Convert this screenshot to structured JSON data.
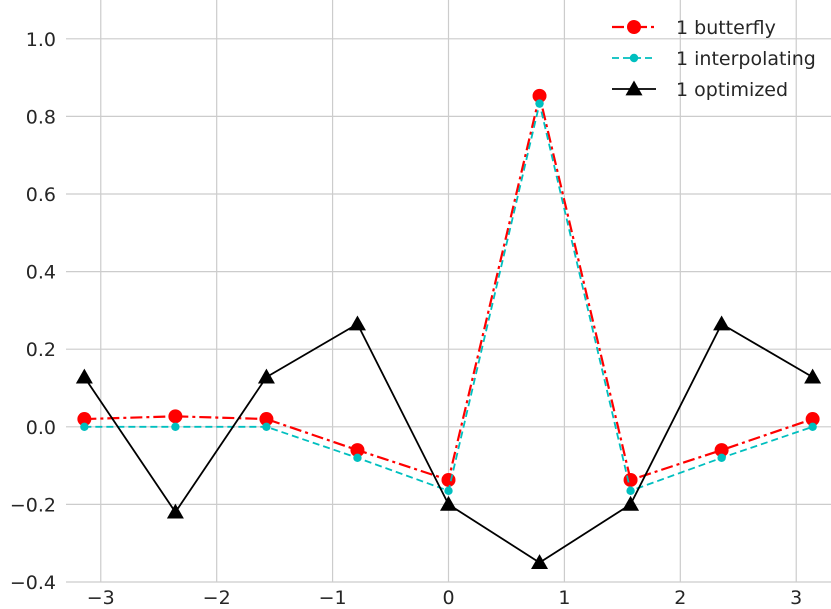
{
  "chart_data": {
    "type": "line",
    "title": "",
    "xlabel": "",
    "ylabel": "",
    "xlim": [
      -3.3,
      3.3
    ],
    "ylim": [
      -0.4,
      1.1
    ],
    "grid": true,
    "legend_position": "top-right",
    "x_ticks": [
      -3,
      -2,
      -1,
      0,
      1,
      2,
      3
    ],
    "x_tick_labels": [
      "−3",
      "−2",
      "−1",
      "0",
      "1",
      "2",
      "3"
    ],
    "y_ticks": [
      -0.4,
      -0.2,
      0.0,
      0.2,
      0.4,
      0.6,
      0.8,
      1.0
    ],
    "y_tick_labels": [
      "−0.4",
      "−0.2",
      "0.0",
      "0.2",
      "0.4",
      "0.6",
      "0.8",
      "1.0"
    ],
    "x": [
      -3.1416,
      -2.3562,
      -1.5708,
      -0.7854,
      0.0,
      0.7854,
      1.5708,
      2.3562,
      3.1416
    ],
    "series": [
      {
        "name": "1 butterfly",
        "color": "#ff0000",
        "linestyle": "dashdot",
        "marker": "circle",
        "values": [
          0.02,
          0.027,
          0.02,
          -0.06,
          -0.137,
          0.853,
          -0.137,
          -0.06,
          0.02
        ]
      },
      {
        "name": "1 interpolating",
        "color": "#00bfbf",
        "linestyle": "dashed",
        "marker": "small-circle",
        "values": [
          0.0,
          0.0,
          0.0,
          -0.08,
          -0.165,
          0.833,
          -0.165,
          -0.08,
          0.0
        ]
      },
      {
        "name": "1 optimized",
        "color": "#000000",
        "linestyle": "solid",
        "marker": "triangle",
        "values": [
          0.128,
          -0.22,
          0.128,
          0.265,
          -0.2,
          -0.35,
          -0.2,
          0.265,
          0.128
        ]
      }
    ]
  }
}
